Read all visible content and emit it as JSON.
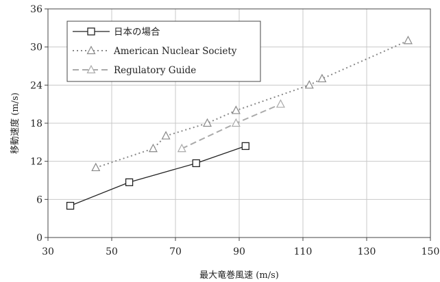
{
  "chart_data": {
    "type": "line",
    "title": "",
    "xlabel": "最大竜巻風速 (m/s)",
    "ylabel": "移動速度 (m/s)",
    "xlim": [
      30,
      150
    ],
    "ylim": [
      0,
      36
    ],
    "xticks": [
      30,
      50,
      70,
      90,
      110,
      130,
      150
    ],
    "yticks": [
      0,
      6,
      12,
      18,
      24,
      30,
      36
    ],
    "grid": true,
    "legend_position": "top-left",
    "series": [
      {
        "name": "日本の場合",
        "style": "solid",
        "marker": "square",
        "color": "#222222",
        "x": [
          37,
          55.5,
          76.5,
          92
        ],
        "y": [
          5.0,
          8.7,
          11.7,
          14.4
        ]
      },
      {
        "name": "American Nuclear Society",
        "style": "dotted",
        "marker": "triangle",
        "color": "#888888",
        "x": [
          45,
          63,
          67,
          80,
          89,
          112,
          116,
          143
        ],
        "y": [
          11.0,
          14.0,
          16.0,
          18.0,
          20.0,
          24.0,
          25.0,
          31.0
        ]
      },
      {
        "name": "Regulatory Guide",
        "style": "dashed",
        "marker": "triangle",
        "color": "#aaaaaa",
        "x": [
          72,
          89,
          103
        ],
        "y": [
          14.0,
          18.0,
          21.0
        ]
      }
    ]
  }
}
